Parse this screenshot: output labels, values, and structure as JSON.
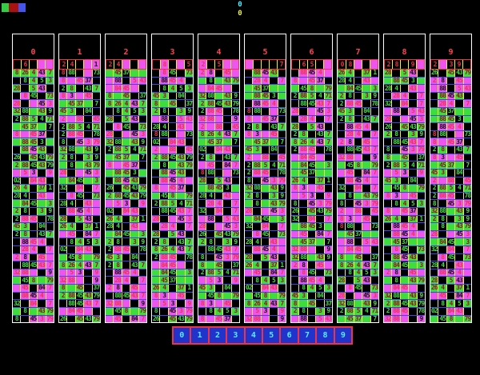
{
  "screen": {
    "bg": "#000000"
  },
  "top_indicators": {
    "cyan_value": "0",
    "cyan_color": "#55eeff",
    "yellow_value": "0",
    "yellow_color": "#eeee44"
  },
  "legend": {
    "swatches": [
      {
        "name": "green",
        "color": "#33cc44",
        "width": 9
      },
      {
        "name": "maroon",
        "color": "#aa1111",
        "width": 12
      },
      {
        "name": "blue",
        "color": "#4455ee",
        "width": 9
      }
    ]
  },
  "palette": {
    "bg": {
      "k": "#000000",
      "g": "#3ddd3d",
      "m": "#ee55ee"
    },
    "fg": {
      "r": "#ee3344",
      "d": "#991122",
      "k": "#101010",
      "g": "#44dd44",
      "n": "#0a7a2a",
      "m": "#ee55ee"
    },
    "grid_yellow": "#eeee44",
    "grid_blue": "#4444ee",
    "column_border": "#ffffff",
    "header_border": "#ee3344",
    "column_label_color": "#ff4455"
  },
  "row_pool": [
    "gd8,gd26,gd4,mk43,gd7",
    "k,mr28,mr4,k,mr7",
    "kg2,gd88,gd5,kg4,gd71",
    "k,mr88,mk45,mr4,m",
    "gd2,gd88,kg45,gd43,kg79",
    "kr8,kg88,k,m,kg73",
    "gd2,kg8,k,gd3,kg9",
    "k,kg8,gd4,kg5,gd3",
    "mr2,mk8,k,mr45,m",
    "g,gd45,gd37,g,kg7",
    "kg32,k,mr84,k,mr7",
    "m,mr5,mk3,k,mr9",
    "g,gd45,kg37,g,g",
    "kg2,mr88,mr45,k,kg78",
    "gd28,k,gd5,mk43,k",
    "k,kg88,kg45,mr43,mr7",
    "mr8,m,mr45,mk37,k",
    "g,kg8,g,gd43,gd79",
    "kg02,k,mr84,mr43,k",
    "m,mk88,k,mr5,mr43",
    "gd45,gd3,k,kg84,k",
    "k,mr8,kg45,k,gd73",
    "mr32,mr88,m,k,mk9",
    "g,gd88,gd45,kg3,g",
    "kg8,k,mk45,mr3,mr79",
    "gd26,gd4,k,gd37,kg1",
    "m,mr84,mr45,m,k",
    "kg2,gd8,k,kg43,gd7",
    "mr28,k,m,mk45,mr3",
    "g,kg45,gd8,g,gd79",
    "k,gd88,mk45,gd43,k",
    "mr2,m,mr88,k,mr45",
    "kg28,kg4,k,mr43,m",
    "gd8,g,gd45,k,kg37",
    "k,mk88,mr45,mr4,k",
    "gd32,kg88,g,gd43,kg9",
    "m,mr45,k,mk84,mr7",
    "kg26,k,gd45,kg43,gd79",
    "mr8,mk3,m,mr45,k",
    "g,gd84,kg45,g,gd3"
  ],
  "columns": [
    {
      "label": "0",
      "header": "k,kr6,k,m,m",
      "rows": [
        0,
        7,
        14,
        21,
        28,
        35,
        2,
        9,
        16,
        23,
        30,
        37,
        4,
        11,
        18,
        25,
        32,
        39,
        6,
        13,
        20,
        27,
        34,
        1,
        8,
        15,
        22,
        29,
        36,
        3,
        10,
        17,
        24
      ]
    },
    {
      "label": "1",
      "header": "kr2,kr4,k,m,mk1",
      "rows": [
        5,
        16,
        27,
        38,
        9,
        20,
        31,
        2,
        13,
        24,
        35,
        6,
        17,
        28,
        39,
        10,
        21,
        32,
        3,
        14,
        25,
        36,
        7,
        18,
        29,
        0,
        11,
        22,
        33,
        4,
        15,
        26,
        37
      ]
    },
    {
      "label": "2",
      "header": "kr2,kr4,m,k,m",
      "rows": [
        12,
        19,
        26,
        33,
        0,
        7,
        14,
        21,
        28,
        35,
        2,
        9,
        16,
        23,
        30,
        37,
        4,
        11,
        18,
        25,
        32,
        39,
        6,
        13,
        20,
        27,
        34,
        1,
        8,
        15,
        22,
        29,
        36
      ]
    },
    {
      "label": "3",
      "header": "k,mr8,k,m,kr5",
      "rows": [
        21,
        34,
        7,
        20,
        33,
        6,
        19,
        32,
        5,
        18,
        31,
        4,
        17,
        30,
        3,
        16,
        29,
        2,
        15,
        28,
        1,
        14,
        27,
        0,
        13,
        26,
        39,
        12,
        25,
        38,
        11,
        24,
        37
      ]
    },
    {
      "label": "4",
      "header": "mr2,k,kr5,m,m",
      "rows": [
        8,
        17,
        26,
        35,
        4,
        13,
        22,
        31,
        0,
        9,
        18,
        27,
        36,
        5,
        14,
        23,
        32,
        1,
        10,
        19,
        28,
        37,
        6,
        15,
        24,
        33,
        2,
        11,
        20,
        29,
        38,
        7,
        16
      ]
    },
    {
      "label": "5",
      "header": "m,k,k,k,kr7",
      "rows": [
        30,
        1,
        12,
        23,
        34,
        5,
        16,
        27,
        38,
        9,
        20,
        31,
        2,
        13,
        24,
        35,
        6,
        17,
        28,
        39,
        10,
        21,
        32,
        3,
        14,
        25,
        36,
        7,
        18,
        29,
        0,
        11,
        22
      ]
    },
    {
      "label": "6",
      "header": "k,kr6,kr5,k,m",
      "rows": [
        3,
        16,
        29,
        2,
        15,
        28,
        1,
        14,
        27,
        0,
        13,
        26,
        39,
        12,
        25,
        38,
        11,
        24,
        37,
        10,
        23,
        36,
        9,
        22,
        35,
        8,
        21,
        34,
        7,
        20,
        33,
        6,
        19
      ]
    },
    {
      "label": "7",
      "header": "kr0,kr8,m,k,m",
      "rows": [
        25,
        32,
        39,
        6,
        13,
        20,
        27,
        34,
        1,
        8,
        15,
        22,
        29,
        36,
        3,
        10,
        17,
        24,
        31,
        38,
        5,
        12,
        19,
        26,
        33,
        0,
        7,
        14,
        21,
        28,
        35,
        2,
        9
      ]
    },
    {
      "label": "8",
      "header": "kr2,kr8,k,kr9,m",
      "rows": [
        14,
        23,
        32,
        1,
        10,
        19,
        28,
        37,
        6,
        15,
        24,
        33,
        2,
        11,
        20,
        29,
        38,
        7,
        16,
        25,
        34,
        3,
        12,
        21,
        30,
        39,
        8,
        17,
        26,
        35,
        4,
        13,
        22
      ]
    },
    {
      "label": "9",
      "header": "kr2,m,kr3,kr9,k",
      "rows": [
        37,
        8,
        19,
        30,
        1,
        12,
        23,
        34,
        5,
        16,
        27,
        38,
        9,
        20,
        31,
        2,
        13,
        24,
        35,
        6,
        17,
        28,
        39,
        10,
        21,
        32,
        3,
        14,
        25,
        36,
        7,
        18,
        29
      ]
    }
  ],
  "numpad": {
    "labels": [
      "0",
      "1",
      "2",
      "3",
      "4",
      "5",
      "6",
      "7",
      "8",
      "9"
    ],
    "button_bg": "#2233cc",
    "button_text": "#55eeff",
    "border_color": "#ee3344"
  }
}
